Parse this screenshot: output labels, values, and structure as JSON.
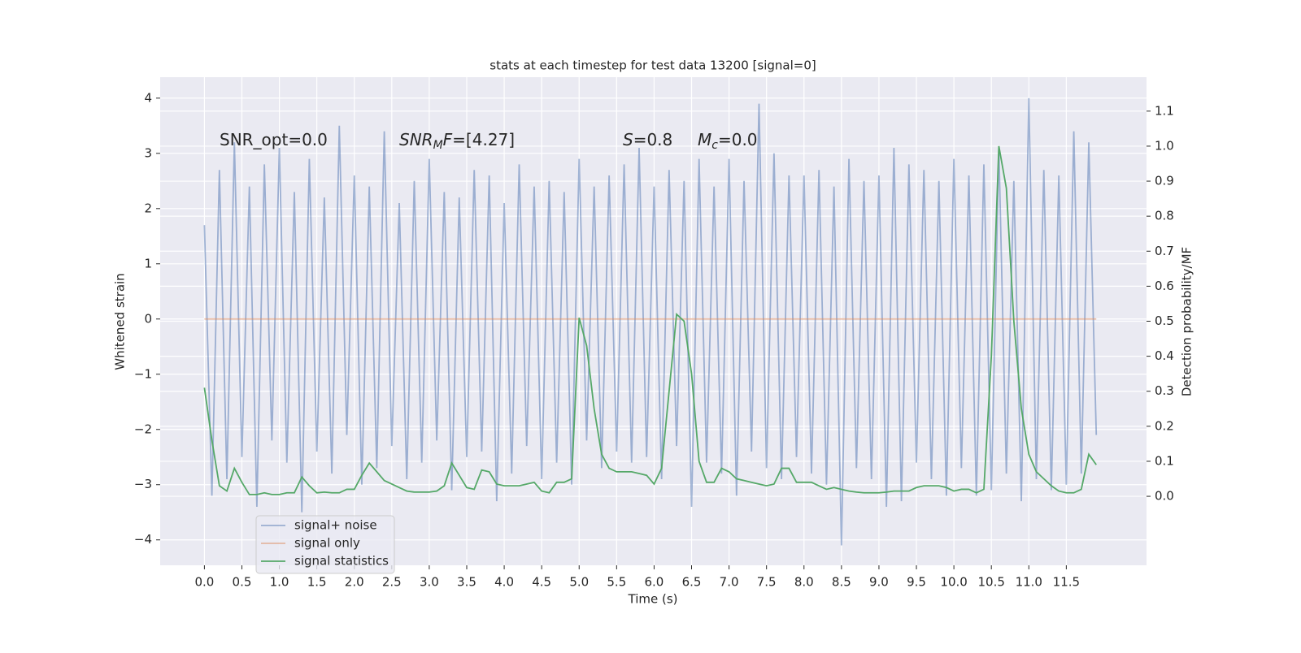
{
  "chart_data": {
    "type": "line",
    "title": "stats at each timestep for test data 13200 [signal=0]",
    "x_label": "Time (s)",
    "y_label": "Whitened strain",
    "y2_label": "Detection probability/MF",
    "annotations": [
      {
        "parts": [
          {
            "text": "SNR_opt=0.0"
          }
        ]
      },
      {
        "parts": [
          {
            "text": "SNR",
            "style": "italic"
          },
          {
            "text": "M",
            "style": "sub"
          },
          {
            "text": "F",
            "style": "italic"
          },
          {
            "text": "=[4.27]"
          }
        ]
      },
      {
        "parts": [
          {
            "text": "S",
            "style": "italic"
          },
          {
            "text": "=0.8"
          }
        ]
      },
      {
        "parts": [
          {
            "text": "M",
            "style": "italic"
          },
          {
            "text": "c",
            "style": "sub"
          },
          {
            "text": "=0.0"
          }
        ]
      }
    ],
    "grid": true,
    "legend": "lower left",
    "xlim": [
      -0.59,
      12.57
    ],
    "ylim": [
      -4.46,
      4.38
    ],
    "y2lim": [
      -0.197,
      1.197
    ],
    "xticks": [
      {
        "value": 0,
        "label": "0.0"
      },
      {
        "value": 0.5,
        "label": "0.5"
      },
      {
        "value": 1,
        "label": "1.0"
      },
      {
        "value": 1.5,
        "label": "1.5"
      },
      {
        "value": 2,
        "label": "2.0"
      },
      {
        "value": 2.5,
        "label": "2.5"
      },
      {
        "value": 3,
        "label": "3.0"
      },
      {
        "value": 3.5,
        "label": "3.5"
      },
      {
        "value": 4,
        "label": "4.0"
      },
      {
        "value": 4.5,
        "label": "4.5"
      },
      {
        "value": 5,
        "label": "5.0"
      },
      {
        "value": 5.5,
        "label": "5.5"
      },
      {
        "value": 6,
        "label": "6.0"
      },
      {
        "value": 6.5,
        "label": "6.5"
      },
      {
        "value": 7,
        "label": "7.0"
      },
      {
        "value": 7.5,
        "label": "7.5"
      },
      {
        "value": 8,
        "label": "8.0"
      },
      {
        "value": 8.5,
        "label": "8.5"
      },
      {
        "value": 9,
        "label": "9.0"
      },
      {
        "value": 9.5,
        "label": "9.5"
      },
      {
        "value": 10,
        "label": "10.0"
      },
      {
        "value": 10.5,
        "label": "10.5"
      },
      {
        "value": 11,
        "label": "11.0"
      },
      {
        "value": 11.5,
        "label": "11.5"
      }
    ],
    "yticks": [
      {
        "value": -4,
        "label": "−4"
      },
      {
        "value": -3,
        "label": "−3"
      },
      {
        "value": -2,
        "label": "−2"
      },
      {
        "value": -1,
        "label": "−1"
      },
      0,
      1,
      2,
      3,
      4
    ],
    "y2ticks": [
      {
        "value": 0,
        "label": "0.0"
      },
      {
        "value": 0.1,
        "label": "0.1"
      },
      {
        "value": 0.2,
        "label": "0.2"
      },
      {
        "value": 0.3,
        "label": "0.3"
      },
      {
        "value": 0.4,
        "label": "0.4"
      },
      {
        "value": 0.5,
        "label": "0.5"
      },
      {
        "value": 0.6,
        "label": "0.6"
      },
      {
        "value": 0.7,
        "label": "0.7"
      },
      {
        "value": 0.8,
        "label": "0.8"
      },
      {
        "value": 0.9,
        "label": "0.9"
      },
      {
        "value": 1,
        "label": "1.0"
      },
      {
        "value": 1.1,
        "label": "1.1"
      }
    ],
    "x": [
      0,
      0.1,
      0.2,
      0.3,
      0.4,
      0.5,
      0.6,
      0.7,
      0.8,
      0.9,
      1,
      1.1,
      1.2,
      1.3,
      1.4,
      1.5,
      1.6,
      1.7,
      1.8,
      1.9,
      2,
      2.1,
      2.2,
      2.3,
      2.4,
      2.5,
      2.6,
      2.7,
      2.8,
      2.9,
      3,
      3.1,
      3.2,
      3.3,
      3.4,
      3.5,
      3.6,
      3.7,
      3.8,
      3.9,
      4,
      4.1,
      4.2,
      4.3,
      4.4,
      4.5,
      4.6,
      4.7,
      4.8,
      4.9,
      5,
      5.1,
      5.2,
      5.3,
      5.4,
      5.5,
      5.6,
      5.7,
      5.8,
      5.9,
      6,
      6.1,
      6.2,
      6.3,
      6.4,
      6.5,
      6.6,
      6.7,
      6.8,
      6.9,
      7,
      7.1,
      7.2,
      7.3,
      7.4,
      7.5,
      7.6,
      7.7,
      7.8,
      7.9,
      8,
      8.1,
      8.2,
      8.3,
      8.4,
      8.5,
      8.6,
      8.7,
      8.8,
      8.9,
      9,
      9.1,
      9.2,
      9.3,
      9.4,
      9.5,
      9.6,
      9.7,
      9.8,
      9.9,
      10,
      10.1,
      10.2,
      10.3,
      10.4,
      10.5,
      10.6,
      10.7,
      10.8,
      10.9,
      11,
      11.1,
      11.2,
      11.3,
      11.4,
      11.5,
      11.6,
      11.7,
      11.8,
      11.9
    ],
    "series": [
      {
        "name": "signal+ noise",
        "color": "#4c72b0",
        "alpha": 0.5,
        "axis": "y",
        "values": [
          1.7,
          -3.2,
          2.7,
          -2.9,
          3.2,
          -2.5,
          2.4,
          -3.4,
          2.8,
          -2.2,
          3.1,
          -2.6,
          2.3,
          -3.5,
          2.9,
          -2.4,
          2.2,
          -2.8,
          3.5,
          -2.1,
          2.6,
          -3.0,
          2.4,
          -2.7,
          3.4,
          -2.3,
          2.1,
          -2.9,
          2.5,
          -2.6,
          2.9,
          -2.2,
          2.3,
          -3.1,
          2.2,
          -2.5,
          2.7,
          -2.4,
          2.6,
          -3.3,
          2.1,
          -2.8,
          2.8,
          -2.3,
          2.4,
          -2.9,
          2.5,
          -2.6,
          2.3,
          -3.0,
          2.9,
          -2.2,
          2.4,
          -2.7,
          2.6,
          -2.4,
          2.8,
          -2.6,
          3.1,
          -2.5,
          2.4,
          -2.9,
          2.7,
          -2.3,
          2.5,
          -3.4,
          2.9,
          -2.6,
          2.4,
          -2.8,
          2.9,
          -3.2,
          2.5,
          -2.4,
          3.9,
          -2.7,
          3.0,
          -2.9,
          2.6,
          -2.5,
          2.6,
          -2.8,
          2.7,
          -3.0,
          2.4,
          -4.1,
          2.9,
          -2.7,
          2.5,
          -2.9,
          2.6,
          -3.4,
          3.1,
          -3.3,
          2.8,
          -2.6,
          2.7,
          -2.9,
          2.5,
          -3.2,
          2.9,
          -2.7,
          2.6,
          -3.2,
          2.8,
          -3.1,
          3.1,
          -2.8,
          2.5,
          -3.3,
          4.0,
          -2.9,
          2.7,
          -3.1,
          2.6,
          -3.0,
          3.4,
          -2.8,
          3.2,
          -2.1
        ]
      },
      {
        "name": "signal only",
        "color": "#dd8452",
        "alpha": 0.5,
        "axis": "y",
        "values": [
          0,
          0,
          0,
          0,
          0,
          0,
          0,
          0,
          0,
          0,
          0,
          0,
          0,
          0,
          0,
          0,
          0,
          0,
          0,
          0,
          0,
          0,
          0,
          0,
          0,
          0,
          0,
          0,
          0,
          0,
          0,
          0,
          0,
          0,
          0,
          0,
          0,
          0,
          0,
          0,
          0,
          0,
          0,
          0,
          0,
          0,
          0,
          0,
          0,
          0,
          0,
          0,
          0,
          0,
          0,
          0,
          0,
          0,
          0,
          0,
          0,
          0,
          0,
          0,
          0,
          0,
          0,
          0,
          0,
          0,
          0,
          0,
          0,
          0,
          0,
          0,
          0,
          0,
          0,
          0,
          0,
          0,
          0,
          0,
          0,
          0,
          0,
          0,
          0,
          0,
          0,
          0,
          0,
          0,
          0,
          0,
          0,
          0,
          0,
          0,
          0,
          0,
          0,
          0,
          0,
          0,
          0,
          0,
          0,
          0,
          0,
          0,
          0,
          0,
          0,
          0,
          0,
          0,
          0,
          0
        ]
      },
      {
        "name": "signal statistics",
        "color": "#55a868",
        "alpha": 1,
        "axis": "y2",
        "values": [
          0.31,
          0.16,
          0.03,
          0.015,
          0.08,
          0.04,
          0.005,
          0.005,
          0.01,
          0.005,
          0.005,
          0.01,
          0.01,
          0.055,
          0.03,
          0.01,
          0.012,
          0.01,
          0.01,
          0.02,
          0.02,
          0.06,
          0.095,
          0.07,
          0.045,
          0.035,
          0.025,
          0.015,
          0.012,
          0.012,
          0.012,
          0.015,
          0.03,
          0.095,
          0.06,
          0.025,
          0.02,
          0.075,
          0.07,
          0.035,
          0.03,
          0.03,
          0.03,
          0.035,
          0.04,
          0.015,
          0.01,
          0.04,
          0.04,
          0.05,
          0.51,
          0.43,
          0.25,
          0.12,
          0.08,
          0.07,
          0.07,
          0.07,
          0.065,
          0.06,
          0.035,
          0.08,
          0.3,
          0.52,
          0.5,
          0.35,
          0.1,
          0.04,
          0.04,
          0.08,
          0.07,
          0.05,
          0.045,
          0.04,
          0.035,
          0.03,
          0.035,
          0.08,
          0.08,
          0.04,
          0.04,
          0.04,
          0.03,
          0.02,
          0.025,
          0.02,
          0.015,
          0.012,
          0.01,
          0.01,
          0.01,
          0.012,
          0.015,
          0.015,
          0.015,
          0.025,
          0.03,
          0.03,
          0.03,
          0.025,
          0.015,
          0.02,
          0.02,
          0.01,
          0.02,
          0.4,
          1.0,
          0.88,
          0.5,
          0.25,
          0.12,
          0.07,
          0.05,
          0.03,
          0.015,
          0.01,
          0.01,
          0.02,
          0.12,
          0.09
        ]
      }
    ]
  }
}
